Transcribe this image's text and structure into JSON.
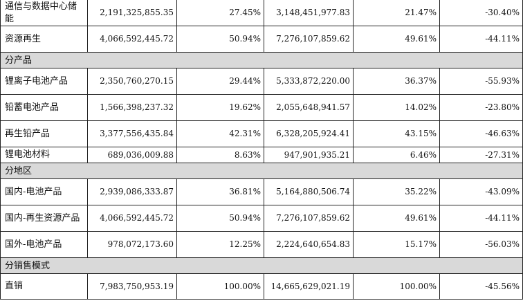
{
  "rows": [
    {
      "kind": "data",
      "name": "通信与数据中心储能",
      "rev_cur": "2,191,325,855.35",
      "pct_cur": "27.45%",
      "rev_prev": "3,148,451,977.83",
      "pct_prev": "21.47%",
      "change": "-30.40%"
    },
    {
      "kind": "data",
      "name": "资源再生",
      "rev_cur": "4,066,592,445.72",
      "pct_cur": "50.94%",
      "rev_prev": "7,276,107,859.62",
      "pct_prev": "49.61%",
      "change": "-44.11%"
    },
    {
      "kind": "section",
      "name": "分产品"
    },
    {
      "kind": "data",
      "name": "锂离子电池产品",
      "rev_cur": "2,350,760,270.15",
      "pct_cur": "29.44%",
      "rev_prev": "5,333,872,220.00",
      "pct_prev": "36.37%",
      "change": "-55.93%"
    },
    {
      "kind": "data",
      "name": "铅蓄电池产品",
      "rev_cur": "1,566,398,237.32",
      "pct_cur": "19.62%",
      "rev_prev": "2,055,648,941.57",
      "pct_prev": "14.02%",
      "change": "-23.80%"
    },
    {
      "kind": "data",
      "name": "再生铅产品",
      "rev_cur": "3,377,556,435.84",
      "pct_cur": "42.31%",
      "rev_prev": "6,328,205,924.41",
      "pct_prev": "43.15%",
      "change": "-46.63%"
    },
    {
      "kind": "data",
      "name": "锂电池材料",
      "rev_cur": "689,036,009.88",
      "pct_cur": "8.63%",
      "rev_prev": "947,901,935.21",
      "pct_prev": "6.46%",
      "change": "-27.31%"
    },
    {
      "kind": "section",
      "name": "分地区"
    },
    {
      "kind": "data",
      "name": "国内-电池产品",
      "rev_cur": "2,939,086,333.87",
      "pct_cur": "36.81%",
      "rev_prev": "5,164,880,506.74",
      "pct_prev": "35.22%",
      "change": "-43.09%"
    },
    {
      "kind": "data",
      "name": "国内-再生资源产品",
      "rev_cur": "4,066,592,445.72",
      "pct_cur": "50.94%",
      "rev_prev": "7,276,107,859.62",
      "pct_prev": "49.61%",
      "change": "-44.11%"
    },
    {
      "kind": "data",
      "name": "国外-电池产品",
      "rev_cur": "978,072,173.60",
      "pct_cur": "12.25%",
      "rev_prev": "2,224,640,654.83",
      "pct_prev": "15.17%",
      "change": "-56.03%"
    },
    {
      "kind": "section",
      "name": "分销售模式"
    },
    {
      "kind": "data",
      "name": "直销",
      "rev_cur": "7,983,750,953.19",
      "pct_cur": "100.00%",
      "rev_prev": "14,665,629,021.19",
      "pct_prev": "100.00%",
      "change": "-45.56%"
    }
  ]
}
